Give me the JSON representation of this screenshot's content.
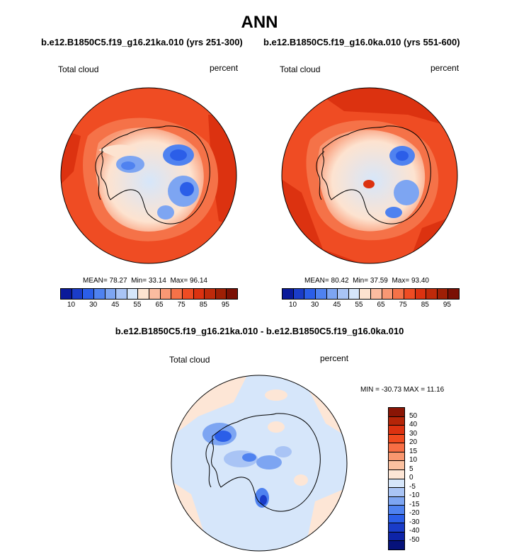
{
  "title": "ANN",
  "panels": [
    {
      "title": "b.e12.B1850C5.f19_g16.21ka.010 (yrs 251-300)",
      "variable": "Total cloud",
      "units": "percent",
      "stats": {
        "mean": "78.27",
        "min": "33.14",
        "max": "96.14"
      }
    },
    {
      "title": "b.e12.B1850C5.f19_g16.0ka.010 (yrs 551-600)",
      "variable": "Total cloud",
      "units": "percent",
      "stats": {
        "mean": "80.42",
        "min": "37.59",
        "max": "93.40"
      }
    }
  ],
  "stat_labels": {
    "mean": "MEAN=",
    "min": "Min=",
    "max": "Max="
  },
  "colorbar_top": {
    "labels": [
      "10",
      "30",
      "45",
      "55",
      "65",
      "75",
      "85",
      "95"
    ],
    "colors": [
      "#0a1a9a",
      "#1a3cc8",
      "#2b5ee8",
      "#4f82f0",
      "#7da5f2",
      "#a9c4f5",
      "#d6e6fa",
      "#fde3d0",
      "#fbbca0",
      "#f99874",
      "#f57248",
      "#ef4c23",
      "#dc3210",
      "#bf2a0a",
      "#9e1f05",
      "#7a1004"
    ]
  },
  "diff": {
    "title": "b.e12.B1850C5.f19_g16.21ka.010 - b.e12.B1850C5.f19_g16.0ka.010",
    "variable": "Total cloud",
    "units": "percent",
    "stats_text": "MIN = -30.73 MAX =  11.16",
    "colorbar": {
      "labels": [
        "50",
        "40",
        "30",
        "20",
        "15",
        "10",
        "5",
        "0",
        "-5",
        "-10",
        "-15",
        "-20",
        "-30",
        "-40",
        "-50"
      ],
      "colors": [
        "#8a1505",
        "#b52508",
        "#dc3210",
        "#f04a1e",
        "#f76e44",
        "#f9976f",
        "#fbc1a0",
        "#fde6d6",
        "#d6e6fa",
        "#a9c4f5",
        "#7da5f2",
        "#4f82f0",
        "#2b5ee8",
        "#1a3cc8",
        "#0e24a8",
        "#06127a"
      ]
    }
  }
}
